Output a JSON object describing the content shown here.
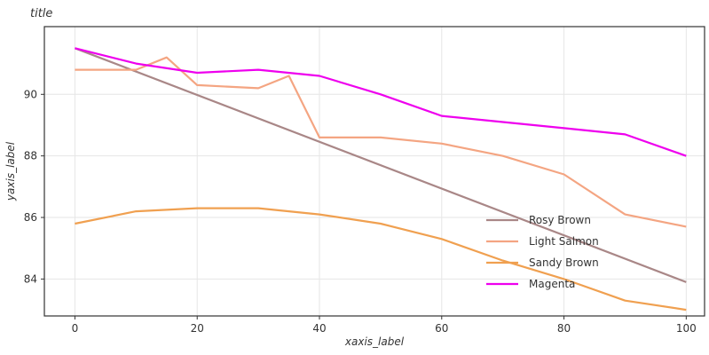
{
  "chart_data": {
    "type": "line",
    "title": "title",
    "xlabel": "xaxis_label",
    "ylabel": "yaxis_label",
    "xlim": [
      -5,
      103
    ],
    "ylim": [
      82.8,
      92.2
    ],
    "x_ticks": [
      0,
      20,
      40,
      60,
      80,
      100
    ],
    "y_ticks": [
      84,
      86,
      88,
      90
    ],
    "grid": true,
    "legend_position": "center-right",
    "series": [
      {
        "name": "Rosy Brown",
        "color": "#a98787",
        "x": [
          0,
          100
        ],
        "y": [
          91.5,
          83.9
        ]
      },
      {
        "name": "Light Salmon",
        "color": "#f4a582",
        "x": [
          0,
          10,
          15,
          20,
          30,
          35,
          40,
          50,
          60,
          70,
          80,
          90,
          100
        ],
        "y": [
          90.8,
          90.8,
          91.2,
          90.3,
          90.2,
          90.6,
          88.6,
          88.6,
          88.4,
          88.0,
          87.4,
          86.1,
          85.7
        ]
      },
      {
        "name": "Sandy Brown",
        "color": "#f0a050",
        "x": [
          0,
          10,
          20,
          30,
          40,
          50,
          60,
          70,
          80,
          90,
          100
        ],
        "y": [
          85.8,
          86.2,
          86.3,
          86.3,
          86.1,
          85.8,
          85.3,
          84.6,
          84.0,
          83.3,
          83.0
        ]
      },
      {
        "name": "Magenta",
        "color": "#ee00ee",
        "x": [
          0,
          10,
          20,
          30,
          40,
          50,
          60,
          70,
          80,
          90,
          100
        ],
        "y": [
          91.5,
          91.0,
          90.7,
          90.8,
          90.6,
          90.0,
          89.3,
          89.1,
          88.9,
          88.7,
          88.0
        ]
      }
    ]
  }
}
